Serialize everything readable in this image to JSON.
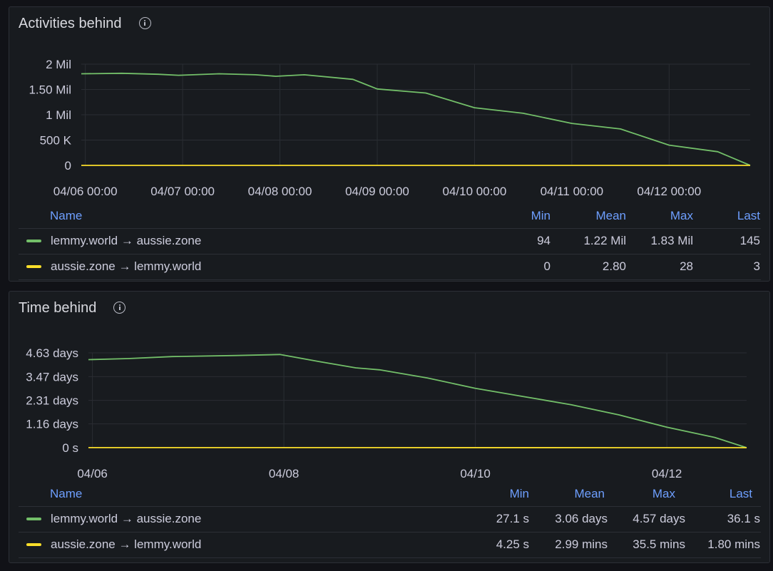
{
  "colors": {
    "series_green": "#73bf69",
    "series_yellow": "#fade2a",
    "grid": "#2a2d33"
  },
  "panels": [
    {
      "title": "Activities behind",
      "legend": {
        "headers": [
          "Name",
          "Min",
          "Mean",
          "Max",
          "Last"
        ],
        "rows": [
          {
            "name": "lemmy.world → aussie.zone",
            "min": "94",
            "mean": "1.22 Mil",
            "max": "1.83 Mil",
            "last": "145"
          },
          {
            "name": "aussie.zone → lemmy.world",
            "min": "0",
            "mean": "2.80",
            "max": "28",
            "last": "3"
          }
        ]
      }
    },
    {
      "title": "Time behind",
      "legend": {
        "headers": [
          "Name",
          "Min",
          "Mean",
          "Max",
          "Last"
        ],
        "rows": [
          {
            "name": "lemmy.world → aussie.zone",
            "min": "27.1 s",
            "mean": "3.06 days",
            "max": "4.57 days",
            "last": "36.1 s"
          },
          {
            "name": "aussie.zone → lemmy.world",
            "min": "4.25 s",
            "mean": "2.99 mins",
            "max": "35.5 mins",
            "last": "1.80 mins"
          }
        ]
      }
    }
  ],
  "chart_data": [
    {
      "type": "line",
      "title": "Activities behind",
      "x_range": [
        "04/05 23:00",
        "04/12 20:00"
      ],
      "x_tick_labels": [
        "04/06 00:00",
        "04/07 00:00",
        "04/08 00:00",
        "04/09 00:00",
        "04/10 00:00",
        "04/11 00:00",
        "04/12 00:00"
      ],
      "y_tick_labels": [
        "0",
        "500 K",
        "1 Mil",
        "1.50 Mil",
        "2 Mil"
      ],
      "y_ticks": [
        0,
        500000,
        1000000,
        1500000,
        2000000
      ],
      "ylim": [
        0,
        2000000
      ],
      "grid": true,
      "legend": "bottom",
      "series": [
        {
          "name": "lemmy.world → aussie.zone",
          "color": "#73bf69",
          "points": [
            [
              "04/05 23:00",
              1810000
            ],
            [
              "04/06 09:00",
              1820000
            ],
            [
              "04/06 18:00",
              1800000
            ],
            [
              "04/06 23:00",
              1780000
            ],
            [
              "04/07 09:00",
              1810000
            ],
            [
              "04/07 18:00",
              1790000
            ],
            [
              "04/07 23:00",
              1760000
            ],
            [
              "04/08 06:00",
              1790000
            ],
            [
              "04/08 18:00",
              1700000
            ],
            [
              "04/09 00:00",
              1510000
            ],
            [
              "04/09 12:00",
              1430000
            ],
            [
              "04/10 00:00",
              1140000
            ],
            [
              "04/10 12:00",
              1030000
            ],
            [
              "04/11 00:00",
              830000
            ],
            [
              "04/11 12:00",
              720000
            ],
            [
              "04/12 00:00",
              400000
            ],
            [
              "04/12 12:00",
              270000
            ],
            [
              "04/12 20:00",
              145
            ]
          ]
        },
        {
          "name": "aussie.zone → lemmy.world",
          "color": "#fade2a",
          "points": [
            [
              "04/05 23:00",
              0
            ],
            [
              "04/09 00:00",
              3
            ],
            [
              "04/12 20:00",
              3
            ]
          ]
        }
      ]
    },
    {
      "type": "line",
      "title": "Time behind",
      "x_range": [
        "04/05 23:00",
        "04/12 20:00"
      ],
      "x_tick_labels": [
        "04/06",
        "04/08",
        "04/10",
        "04/12"
      ],
      "y_tick_labels": [
        "0 s",
        "1.16 days",
        "2.31 days",
        "3.47 days",
        "4.63 days"
      ],
      "y_ticks": [
        0,
        1.16,
        2.31,
        3.47,
        4.63
      ],
      "y_unit": "days",
      "ylim": [
        0,
        4.63
      ],
      "grid": true,
      "legend": "bottom",
      "series": [
        {
          "name": "lemmy.world → aussie.zone",
          "color": "#73bf69",
          "points": [
            [
              "04/05 23:00",
              4.3
            ],
            [
              "04/06 09:00",
              4.35
            ],
            [
              "04/06 20:00",
              4.45
            ],
            [
              "04/07 12:00",
              4.5
            ],
            [
              "04/07 23:00",
              4.55
            ],
            [
              "04/08 09:00",
              4.2
            ],
            [
              "04/08 18:00",
              3.9
            ],
            [
              "04/09 00:00",
              3.8
            ],
            [
              "04/09 12:00",
              3.4
            ],
            [
              "04/10 00:00",
              2.9
            ],
            [
              "04/10 12:00",
              2.5
            ],
            [
              "04/11 00:00",
              2.1
            ],
            [
              "04/11 12:00",
              1.6
            ],
            [
              "04/12 00:00",
              1.0
            ],
            [
              "04/12 12:00",
              0.5
            ],
            [
              "04/12 20:00",
              0.0004
            ]
          ]
        },
        {
          "name": "aussie.zone → lemmy.world",
          "color": "#fade2a",
          "points": [
            [
              "04/05 23:00",
              0.002
            ],
            [
              "04/09 00:00",
              0.002
            ],
            [
              "04/12 20:00",
              0.00125
            ]
          ]
        }
      ]
    }
  ]
}
